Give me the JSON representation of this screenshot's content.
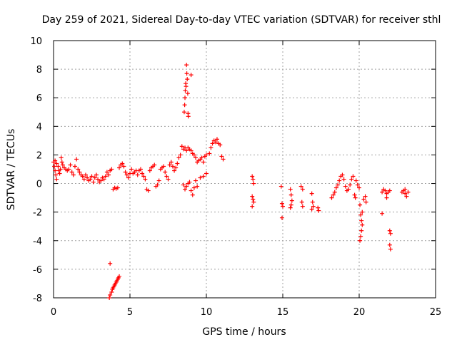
{
  "chart_data": {
    "type": "scatter",
    "title": "Day 259 of 2021, Sidereal Day-to-day VTEC variation (SDTVAR) for receiver sthl",
    "xlabel": "GPS time / hours",
    "ylabel": "SDTVAR / TECUs",
    "xlim": [
      0,
      25
    ],
    "ylim": [
      -8,
      10
    ],
    "xticks": [
      0,
      5,
      10,
      15,
      20,
      25
    ],
    "yticks": [
      -8,
      -6,
      -4,
      -2,
      0,
      2,
      4,
      6,
      8,
      10
    ],
    "grid": true,
    "marker": "+",
    "color": "#ff0000",
    "series": [
      {
        "name": "SDTVAR",
        "points": [
          [
            0.0,
            1.5
          ],
          [
            0.05,
            1.2
          ],
          [
            0.1,
            0.9
          ],
          [
            0.15,
            0.6
          ],
          [
            0.2,
            0.3
          ],
          [
            0.1,
            1.6
          ],
          [
            0.2,
            1.4
          ],
          [
            0.3,
            1.2
          ],
          [
            0.35,
            0.9
          ],
          [
            0.4,
            0.7
          ],
          [
            0.45,
            1.0
          ],
          [
            0.5,
            1.8
          ],
          [
            0.55,
            1.5
          ],
          [
            0.6,
            1.3
          ],
          [
            0.7,
            1.1
          ],
          [
            0.8,
            1.0
          ],
          [
            0.9,
            0.9
          ],
          [
            1.0,
            1.0
          ],
          [
            1.1,
            1.3
          ],
          [
            1.2,
            0.8
          ],
          [
            1.3,
            0.6
          ],
          [
            1.4,
            1.2
          ],
          [
            1.5,
            1.7
          ],
          [
            1.6,
            1.0
          ],
          [
            1.7,
            0.8
          ],
          [
            1.8,
            0.6
          ],
          [
            1.9,
            0.5
          ],
          [
            2.0,
            0.3
          ],
          [
            2.1,
            0.6
          ],
          [
            2.2,
            0.4
          ],
          [
            2.3,
            0.2
          ],
          [
            2.4,
            0.3
          ],
          [
            2.5,
            0.5
          ],
          [
            2.6,
            0.1
          ],
          [
            2.7,
            0.4
          ],
          [
            2.8,
            0.6
          ],
          [
            2.9,
            0.3
          ],
          [
            3.0,
            0.1
          ],
          [
            3.1,
            0.2
          ],
          [
            3.2,
            0.4
          ],
          [
            3.3,
            0.3
          ],
          [
            3.4,
            0.5
          ],
          [
            3.5,
            0.8
          ],
          [
            3.6,
            0.6
          ],
          [
            3.7,
            0.9
          ],
          [
            3.8,
            1.0
          ],
          [
            3.9,
            -0.4
          ],
          [
            4.0,
            -0.3
          ],
          [
            4.1,
            -0.35
          ],
          [
            4.2,
            -0.3
          ],
          [
            4.3,
            1.1
          ],
          [
            4.4,
            1.3
          ],
          [
            4.5,
            1.4
          ],
          [
            4.6,
            1.2
          ],
          [
            4.7,
            0.8
          ],
          [
            4.8,
            0.6
          ],
          [
            4.9,
            0.4
          ],
          [
            5.0,
            0.7
          ],
          [
            5.1,
            1.0
          ],
          [
            5.2,
            0.7
          ],
          [
            5.3,
            0.8
          ],
          [
            5.4,
            0.9
          ],
          [
            5.5,
            0.6
          ],
          [
            5.6,
            0.9
          ],
          [
            5.7,
            1.0
          ],
          [
            5.8,
            0.7
          ],
          [
            5.9,
            0.5
          ],
          [
            6.0,
            0.3
          ],
          [
            6.1,
            -0.4
          ],
          [
            6.2,
            -0.5
          ],
          [
            6.3,
            0.9
          ],
          [
            6.4,
            1.1
          ],
          [
            6.5,
            1.2
          ],
          [
            6.6,
            1.3
          ],
          [
            6.7,
            -0.2
          ],
          [
            6.8,
            -0.1
          ],
          [
            6.9,
            0.2
          ],
          [
            7.0,
            1.0
          ],
          [
            7.1,
            1.1
          ],
          [
            7.2,
            1.2
          ],
          [
            7.3,
            0.8
          ],
          [
            7.4,
            0.5
          ],
          [
            7.5,
            0.3
          ],
          [
            7.6,
            1.3
          ],
          [
            7.7,
            1.5
          ],
          [
            7.8,
            1.2
          ],
          [
            7.9,
            0.9
          ],
          [
            8.0,
            1.1
          ],
          [
            8.1,
            1.4
          ],
          [
            8.2,
            1.8
          ],
          [
            8.3,
            2.0
          ],
          [
            8.4,
            2.6
          ],
          [
            8.5,
            2.4
          ],
          [
            8.6,
            2.5
          ],
          [
            8.7,
            2.3
          ],
          [
            8.8,
            2.5
          ],
          [
            8.9,
            2.4
          ],
          [
            9.0,
            2.3
          ],
          [
            9.1,
            2.1
          ],
          [
            9.2,
            2.0
          ],
          [
            9.3,
            1.8
          ],
          [
            9.4,
            1.5
          ],
          [
            9.5,
            1.6
          ],
          [
            9.6,
            1.7
          ],
          [
            9.7,
            1.8
          ],
          [
            9.8,
            1.5
          ],
          [
            9.9,
            1.9
          ],
          [
            10.0,
            2.0
          ],
          [
            8.5,
            -0.1
          ],
          [
            8.6,
            -0.4
          ],
          [
            8.7,
            -0.2
          ],
          [
            8.8,
            0.0
          ],
          [
            8.9,
            0.1
          ],
          [
            9.0,
            -0.5
          ],
          [
            9.1,
            -0.8
          ],
          [
            9.2,
            -0.3
          ],
          [
            9.3,
            0.2
          ],
          [
            9.4,
            -0.2
          ],
          [
            9.6,
            0.4
          ],
          [
            9.8,
            0.5
          ],
          [
            10.0,
            0.7
          ],
          [
            10.2,
            2.1
          ],
          [
            10.3,
            2.5
          ],
          [
            10.4,
            2.8
          ],
          [
            10.5,
            3.0
          ],
          [
            10.6,
            2.9
          ],
          [
            10.7,
            3.1
          ],
          [
            10.8,
            2.8
          ],
          [
            10.9,
            2.7
          ],
          [
            11.0,
            1.9
          ],
          [
            11.1,
            1.7
          ],
          [
            8.55,
            5.0
          ],
          [
            8.58,
            5.5
          ],
          [
            8.6,
            6.0
          ],
          [
            8.62,
            6.5
          ],
          [
            8.65,
            7.0
          ],
          [
            8.67,
            6.8
          ],
          [
            8.7,
            8.3
          ],
          [
            8.72,
            7.7
          ],
          [
            8.75,
            7.3
          ],
          [
            8.78,
            6.3
          ],
          [
            8.8,
            4.9
          ],
          [
            8.82,
            4.7
          ],
          [
            9.0,
            7.6
          ],
          [
            3.7,
            -5.6
          ],
          [
            3.65,
            -8.0
          ],
          [
            3.7,
            -7.8
          ],
          [
            3.8,
            -7.6
          ],
          [
            3.85,
            -7.4
          ],
          [
            3.9,
            -7.3
          ],
          [
            3.95,
            -7.2
          ],
          [
            4.0,
            -7.1
          ],
          [
            4.05,
            -7.0
          ],
          [
            4.1,
            -6.9
          ],
          [
            4.15,
            -6.8
          ],
          [
            4.2,
            -6.7
          ],
          [
            4.25,
            -6.6
          ],
          [
            4.3,
            -6.5
          ],
          [
            13.0,
            0.5
          ],
          [
            13.05,
            0.3
          ],
          [
            13.0,
            -0.9
          ],
          [
            13.05,
            -1.1
          ],
          [
            13.1,
            -1.3
          ],
          [
            13.0,
            -1.6
          ],
          [
            13.1,
            0.0
          ],
          [
            14.9,
            -0.2
          ],
          [
            14.95,
            -1.4
          ],
          [
            15.0,
            -1.6
          ],
          [
            14.95,
            -2.4
          ],
          [
            15.5,
            -0.4
          ],
          [
            15.55,
            -0.8
          ],
          [
            15.6,
            -1.2
          ],
          [
            15.55,
            -1.5
          ],
          [
            15.5,
            -1.7
          ],
          [
            16.2,
            -0.2
          ],
          [
            16.3,
            -0.4
          ],
          [
            16.25,
            -1.3
          ],
          [
            16.3,
            -1.6
          ],
          [
            16.9,
            -0.7
          ],
          [
            16.95,
            -1.3
          ],
          [
            17.0,
            -1.6
          ],
          [
            16.9,
            -1.8
          ],
          [
            17.3,
            -1.7
          ],
          [
            17.35,
            -1.9
          ],
          [
            18.2,
            -1.0
          ],
          [
            18.3,
            -0.8
          ],
          [
            18.4,
            -0.6
          ],
          [
            18.5,
            -0.3
          ],
          [
            18.6,
            -0.1
          ],
          [
            18.7,
            0.2
          ],
          [
            18.8,
            0.5
          ],
          [
            18.9,
            0.6
          ],
          [
            19.0,
            0.3
          ],
          [
            19.1,
            -0.2
          ],
          [
            19.2,
            -0.5
          ],
          [
            19.3,
            -0.4
          ],
          [
            19.4,
            -0.1
          ],
          [
            19.5,
            0.3
          ],
          [
            19.6,
            0.5
          ],
          [
            19.7,
            -0.8
          ],
          [
            19.75,
            -1.0
          ],
          [
            19.8,
            0.2
          ],
          [
            19.9,
            -0.1
          ],
          [
            20.0,
            -0.3
          ],
          [
            20.05,
            -1.5
          ],
          [
            20.1,
            -2.2
          ],
          [
            20.15,
            -2.6
          ],
          [
            20.2,
            -2.9
          ],
          [
            20.15,
            -3.3
          ],
          [
            20.1,
            -3.7
          ],
          [
            20.05,
            -4.0
          ],
          [
            20.2,
            -2.0
          ],
          [
            20.3,
            -1.1
          ],
          [
            20.4,
            -0.9
          ],
          [
            20.45,
            -1.3
          ],
          [
            21.5,
            -0.6
          ],
          [
            21.6,
            -0.4
          ],
          [
            21.7,
            -0.5
          ],
          [
            21.8,
            -0.7
          ],
          [
            21.9,
            -0.6
          ],
          [
            22.0,
            -0.5
          ],
          [
            21.5,
            -2.1
          ],
          [
            21.8,
            -1.0
          ],
          [
            22.0,
            -3.3
          ],
          [
            22.05,
            -3.5
          ],
          [
            22.0,
            -4.3
          ],
          [
            22.05,
            -4.6
          ],
          [
            22.8,
            -0.6
          ],
          [
            22.9,
            -0.5
          ],
          [
            23.0,
            -0.7
          ],
          [
            23.1,
            -0.9
          ],
          [
            23.0,
            -0.4
          ],
          [
            23.2,
            -0.6
          ]
        ]
      }
    ]
  }
}
